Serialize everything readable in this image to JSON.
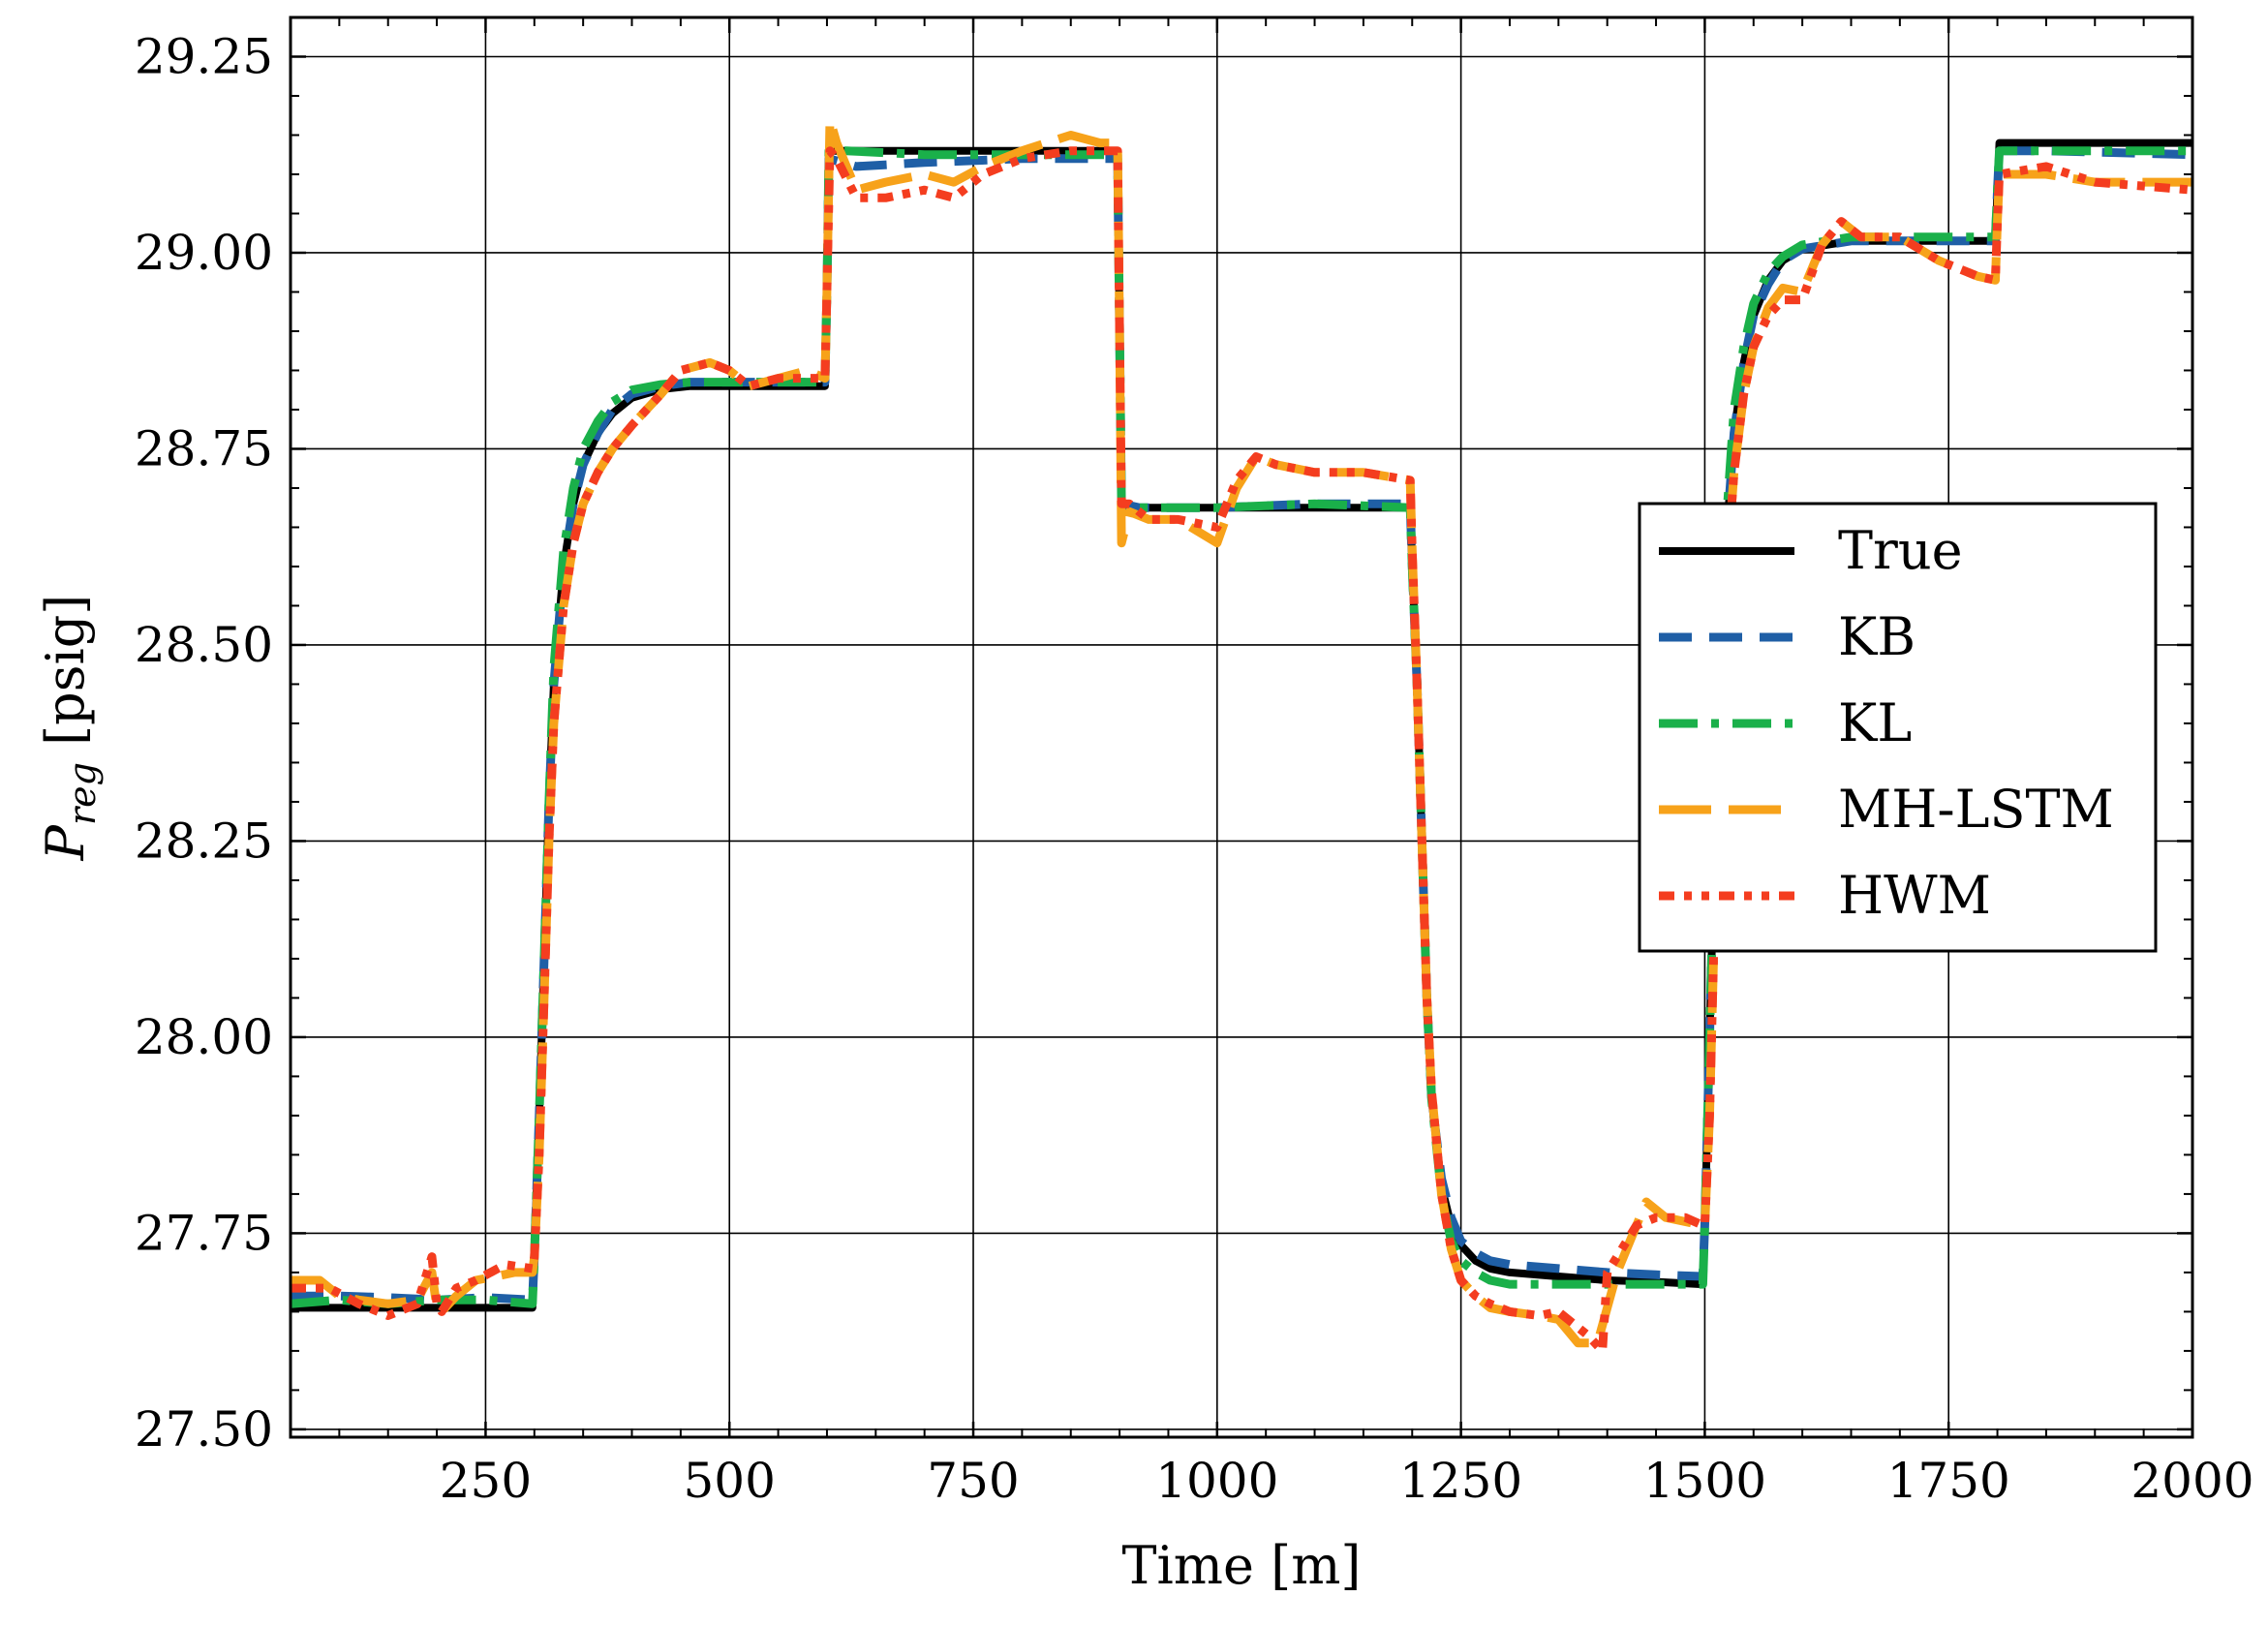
{
  "chart_data": {
    "type": "line",
    "title": "",
    "xlabel": "Time [m]",
    "ylabel_main": "P",
    "ylabel_sub": "reg",
    "ylabel_unit": " [psig]",
    "xlim": [
      50,
      2000
    ],
    "ylim": [
      27.49,
      29.3
    ],
    "xticks": [
      250,
      500,
      750,
      1000,
      1250,
      1500,
      1750,
      2000
    ],
    "yticks": [
      27.5,
      27.75,
      28.0,
      28.25,
      28.5,
      28.75,
      29.0,
      29.25
    ],
    "xtick_labels": [
      "250",
      "500",
      "750",
      "1000",
      "1250",
      "1500",
      "1750",
      "2000"
    ],
    "ytick_labels": [
      "27.50",
      "27.75",
      "28.00",
      "28.25",
      "28.50",
      "28.75",
      "29.00",
      "29.25"
    ],
    "grid": true,
    "legend_position": "center-right",
    "series": [
      {
        "name": "True",
        "color": "#000000",
        "dash": "solid",
        "x": [
          50,
          298,
          300,
          305,
          310,
          315,
          320,
          330,
          340,
          350,
          365,
          380,
          400,
          430,
          460,
          500,
          550,
          598,
          600,
          602,
          620,
          700,
          800,
          898,
          900,
          902,
          920,
          1000,
          1100,
          1198,
          1200,
          1205,
          1210,
          1215,
          1220,
          1230,
          1240,
          1250,
          1265,
          1280,
          1300,
          1350,
          1400,
          1450,
          1498,
          1500,
          1505,
          1510,
          1515,
          1520,
          1530,
          1540,
          1550,
          1565,
          1580,
          1600,
          1650,
          1700,
          1798,
          1800,
          1802,
          1850,
          2000
        ],
        "y": [
          27.655,
          27.655,
          27.72,
          27.9,
          28.1,
          28.3,
          28.45,
          28.6,
          28.68,
          28.73,
          28.77,
          28.795,
          28.815,
          28.826,
          28.83,
          28.83,
          28.83,
          28.83,
          28.95,
          29.13,
          29.13,
          29.13,
          29.13,
          29.13,
          28.9,
          28.675,
          28.675,
          28.675,
          28.675,
          28.675,
          28.6,
          28.45,
          28.25,
          28.05,
          27.92,
          27.81,
          27.76,
          27.735,
          27.715,
          27.705,
          27.7,
          27.695,
          27.69,
          27.688,
          27.685,
          27.76,
          28.0,
          28.25,
          28.45,
          28.6,
          28.77,
          28.86,
          28.92,
          28.965,
          28.99,
          29.005,
          29.015,
          29.015,
          29.015,
          29.08,
          29.14,
          29.14,
          29.14
        ]
      },
      {
        "name": "KB",
        "color": "#1f5fa6",
        "dash": "34 18",
        "x": [
          50,
          100,
          150,
          200,
          250,
          298,
          300,
          305,
          310,
          315,
          320,
          330,
          340,
          350,
          365,
          380,
          400,
          430,
          460,
          500,
          550,
          598,
          600,
          602,
          630,
          700,
          800,
          898,
          900,
          902,
          920,
          1000,
          1100,
          1198,
          1200,
          1205,
          1210,
          1215,
          1220,
          1230,
          1240,
          1250,
          1265,
          1280,
          1300,
          1350,
          1400,
          1450,
          1498,
          1500,
          1505,
          1510,
          1515,
          1520,
          1530,
          1540,
          1550,
          1565,
          1580,
          1600,
          1650,
          1700,
          1798,
          1800,
          1802,
          1850,
          2000
        ],
        "y": [
          27.67,
          27.67,
          27.668,
          27.665,
          27.668,
          27.665,
          27.72,
          27.9,
          28.1,
          28.3,
          28.45,
          28.6,
          28.68,
          28.73,
          28.77,
          28.8,
          28.82,
          28.83,
          28.835,
          28.835,
          28.835,
          28.835,
          28.95,
          29.12,
          29.11,
          29.115,
          29.12,
          29.12,
          28.9,
          28.68,
          28.675,
          28.675,
          28.68,
          28.68,
          28.6,
          28.45,
          28.25,
          28.05,
          27.92,
          27.82,
          27.77,
          27.74,
          27.725,
          27.715,
          27.71,
          27.705,
          27.7,
          27.697,
          27.695,
          27.76,
          28.0,
          28.25,
          28.45,
          28.6,
          28.77,
          28.86,
          28.92,
          28.96,
          28.99,
          29.005,
          29.015,
          29.015,
          29.015,
          29.08,
          29.13,
          29.13,
          29.125
        ]
      },
      {
        "name": "KL",
        "color": "#1ab04a",
        "dash": "40 14 8 14",
        "x": [
          50,
          100,
          150,
          200,
          250,
          298,
          300,
          305,
          310,
          315,
          320,
          330,
          340,
          350,
          365,
          380,
          400,
          430,
          460,
          500,
          550,
          598,
          600,
          602,
          620,
          700,
          800,
          898,
          900,
          902,
          920,
          1000,
          1100,
          1198,
          1200,
          1205,
          1210,
          1215,
          1220,
          1230,
          1240,
          1250,
          1265,
          1280,
          1300,
          1350,
          1400,
          1450,
          1498,
          1500,
          1505,
          1510,
          1515,
          1520,
          1530,
          1540,
          1550,
          1565,
          1580,
          1600,
          1650,
          1700,
          1798,
          1800,
          1802,
          1850,
          2000
        ],
        "y": [
          27.66,
          27.665,
          27.66,
          27.665,
          27.665,
          27.66,
          27.72,
          27.9,
          28.1,
          28.3,
          28.47,
          28.62,
          28.7,
          28.75,
          28.785,
          28.81,
          28.825,
          28.832,
          28.835,
          28.835,
          28.835,
          28.835,
          28.95,
          29.13,
          29.13,
          29.125,
          29.125,
          29.125,
          28.9,
          28.68,
          28.675,
          28.675,
          28.68,
          28.675,
          28.6,
          28.45,
          28.25,
          28.05,
          27.92,
          27.8,
          27.74,
          27.715,
          27.7,
          27.69,
          27.685,
          27.685,
          27.685,
          27.685,
          27.685,
          27.76,
          28.0,
          28.25,
          28.47,
          28.62,
          28.8,
          28.88,
          28.935,
          28.975,
          28.995,
          29.01,
          29.02,
          29.02,
          29.02,
          29.08,
          29.13,
          29.13,
          29.13
        ]
      },
      {
        "name": "MH-LSTM",
        "color": "#f7a21a",
        "dash": "54 18",
        "x": [
          50,
          80,
          100,
          120,
          150,
          180,
          195,
          200,
          205,
          220,
          240,
          260,
          280,
          298,
          300,
          305,
          310,
          315,
          320,
          330,
          340,
          350,
          365,
          380,
          400,
          430,
          450,
          480,
          500,
          520,
          550,
          580,
          598,
          600,
          603,
          610,
          630,
          660,
          700,
          730,
          760,
          800,
          850,
          880,
          898,
          900,
          902,
          910,
          930,
          960,
          1000,
          1020,
          1040,
          1060,
          1100,
          1150,
          1198,
          1200,
          1205,
          1210,
          1215,
          1220,
          1230,
          1240,
          1250,
          1265,
          1280,
          1300,
          1330,
          1350,
          1370,
          1390,
          1410,
          1430,
          1440,
          1460,
          1498,
          1500,
          1505,
          1510,
          1515,
          1520,
          1530,
          1540,
          1550,
          1565,
          1580,
          1600,
          1620,
          1640,
          1660,
          1700,
          1740,
          1780,
          1798,
          1800,
          1802,
          1850,
          1900,
          2000
        ],
        "y": [
          27.69,
          27.69,
          27.67,
          27.665,
          27.66,
          27.665,
          27.7,
          27.655,
          27.65,
          27.67,
          27.69,
          27.695,
          27.7,
          27.7,
          27.72,
          27.85,
          28.05,
          28.25,
          28.4,
          28.55,
          28.63,
          28.68,
          28.72,
          28.75,
          28.78,
          28.82,
          28.85,
          28.86,
          28.85,
          28.83,
          28.84,
          28.85,
          28.84,
          28.95,
          29.17,
          29.14,
          29.08,
          29.09,
          29.1,
          29.09,
          29.11,
          29.13,
          29.15,
          29.14,
          29.14,
          28.9,
          28.63,
          28.67,
          28.66,
          28.66,
          28.63,
          28.7,
          28.74,
          28.73,
          28.72,
          28.72,
          28.71,
          28.62,
          28.45,
          28.25,
          28.05,
          27.93,
          27.8,
          27.73,
          27.69,
          27.67,
          27.655,
          27.65,
          27.645,
          27.64,
          27.61,
          27.61,
          27.7,
          27.76,
          27.79,
          27.77,
          27.76,
          27.76,
          27.9,
          28.15,
          28.38,
          28.55,
          28.72,
          28.82,
          28.88,
          28.93,
          28.955,
          28.95,
          29.01,
          29.04,
          29.02,
          29.02,
          28.99,
          28.97,
          28.965,
          29.04,
          29.1,
          29.1,
          29.09,
          29.09
        ]
      },
      {
        "name": "HWM",
        "color": "#f43d1f",
        "dash": "16 10 8 10 8 10",
        "x": [
          50,
          90,
          120,
          150,
          180,
          195,
          200,
          205,
          220,
          240,
          270,
          298,
          300,
          305,
          310,
          315,
          320,
          330,
          340,
          350,
          365,
          380,
          400,
          430,
          450,
          480,
          500,
          520,
          550,
          580,
          598,
          600,
          603,
          610,
          630,
          660,
          700,
          730,
          760,
          800,
          850,
          880,
          898,
          900,
          902,
          910,
          930,
          960,
          1000,
          1020,
          1040,
          1060,
          1100,
          1150,
          1198,
          1200,
          1205,
          1210,
          1215,
          1220,
          1230,
          1240,
          1250,
          1265,
          1280,
          1300,
          1330,
          1350,
          1380,
          1395,
          1400,
          1410,
          1430,
          1450,
          1480,
          1498,
          1500,
          1505,
          1510,
          1515,
          1520,
          1530,
          1540,
          1550,
          1565,
          1580,
          1600,
          1620,
          1640,
          1660,
          1700,
          1740,
          1780,
          1798,
          1800,
          1802,
          1850,
          1900,
          2000
        ],
        "y": [
          27.68,
          27.68,
          27.66,
          27.645,
          27.66,
          27.72,
          27.66,
          27.65,
          27.68,
          27.69,
          27.71,
          27.705,
          27.72,
          27.85,
          28.05,
          28.25,
          28.4,
          28.55,
          28.63,
          28.68,
          28.72,
          28.75,
          28.78,
          28.82,
          28.85,
          28.86,
          28.85,
          28.83,
          28.84,
          28.84,
          28.84,
          28.95,
          29.13,
          29.12,
          29.07,
          29.07,
          29.08,
          29.07,
          29.1,
          29.12,
          29.13,
          29.13,
          29.13,
          28.9,
          28.68,
          28.68,
          28.66,
          28.66,
          28.65,
          28.71,
          28.74,
          28.73,
          28.72,
          28.72,
          28.71,
          28.62,
          28.45,
          28.25,
          28.05,
          27.93,
          27.8,
          27.73,
          27.69,
          27.67,
          27.66,
          27.65,
          27.645,
          27.65,
          27.62,
          27.6,
          27.7,
          27.72,
          27.76,
          27.77,
          27.77,
          27.76,
          27.76,
          27.9,
          28.15,
          28.38,
          28.55,
          28.72,
          28.82,
          28.88,
          28.92,
          28.94,
          28.94,
          29.01,
          29.04,
          29.02,
          29.02,
          28.99,
          28.97,
          28.965,
          29.04,
          29.1,
          29.11,
          29.09,
          29.08
        ]
      }
    ]
  }
}
